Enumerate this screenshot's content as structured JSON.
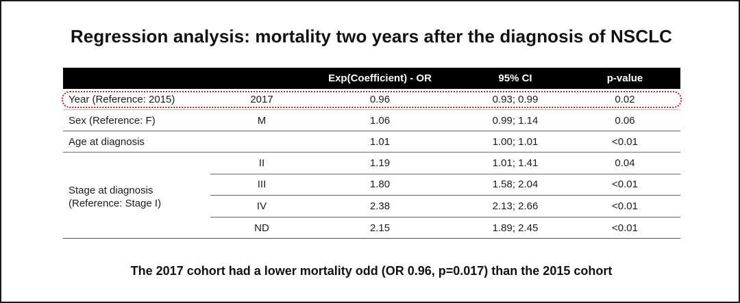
{
  "title": "Regression analysis: mortality two years after the diagnosis of NSCLC",
  "table": {
    "headers": [
      "",
      "",
      "Exp(Coefficient) - OR",
      "95% CI",
      "p-value"
    ],
    "rows": [
      {
        "label": "Year (Reference: 2015)",
        "category": "2017",
        "or": "0.96",
        "ci": "0.93; 0.99",
        "p": "0.02",
        "highlighted": true
      },
      {
        "label": "Sex (Reference: F)",
        "category": "M",
        "or": "1.06",
        "ci": "0.99; 1.14",
        "p": "0.06"
      },
      {
        "label": "Age at diagnosis",
        "category": "",
        "or": "1.01",
        "ci": "1.00; 1.01",
        "p": "<0.01"
      }
    ],
    "stage": {
      "label_line1": "Stage at diagnosis",
      "label_line2": "(Reference: Stage I)",
      "rows": [
        {
          "category": "II",
          "or": "1.19",
          "ci": "1.01; 1.41",
          "p": "0.04"
        },
        {
          "category": "III",
          "or": "1.80",
          "ci": "1.58; 2.04",
          "p": "<0.01"
        },
        {
          "category": "IV",
          "or": "2.38",
          "ci": "2.13; 2.66",
          "p": "<0.01"
        },
        {
          "category": "ND",
          "or": "2.15",
          "ci": "1.89; 2.45",
          "p": "<0.01"
        }
      ]
    }
  },
  "footer": "The 2017 cohort had a lower mortality odd (OR 0.96, p=0.017) than the 2015 cohort",
  "colors": {
    "header_bg": "#000000",
    "highlight_border": "#c0182c",
    "frame_border": "#1a1a1a"
  }
}
